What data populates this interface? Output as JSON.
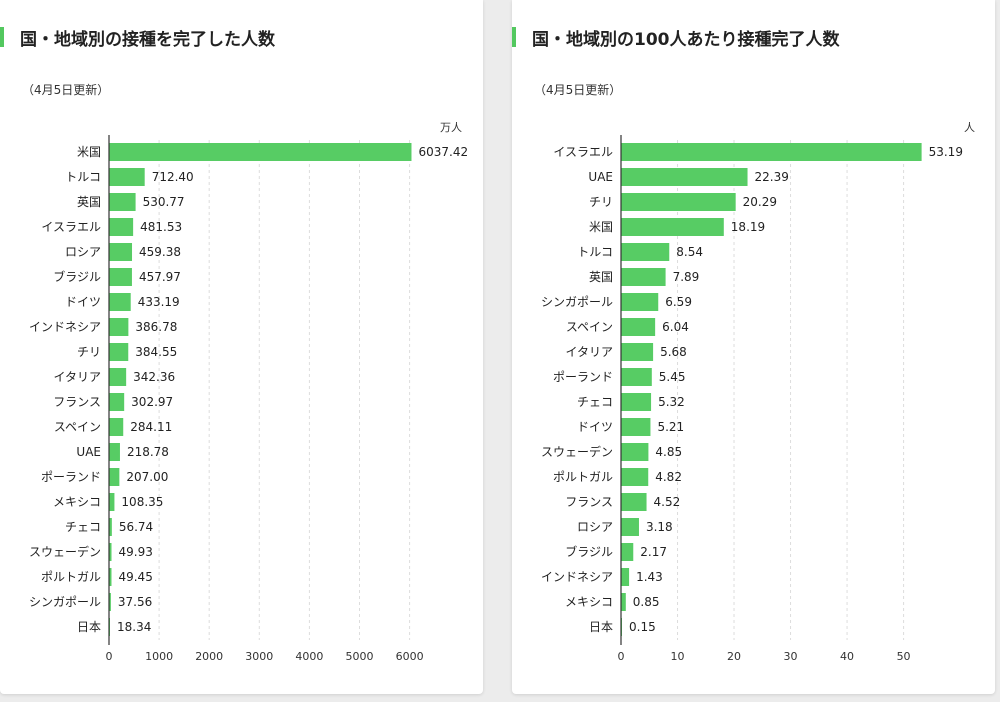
{
  "colors": {
    "bar": "#57cc64",
    "accent": "#53c85f",
    "axis": "#333333",
    "grid": "#dddddd"
  },
  "chart_data": [
    {
      "type": "bar",
      "orientation": "horizontal",
      "title": "国・地域別の接種を完了した人数",
      "subtitle": "（4月5日更新）",
      "unit": "万人",
      "categories": [
        "米国",
        "トルコ",
        "英国",
        "イスラエル",
        "ロシア",
        "ブラジル",
        "ドイツ",
        "インドネシア",
        "チリ",
        "イタリア",
        "フランス",
        "スペイン",
        "UAE",
        "ポーランド",
        "メキシコ",
        "チェコ",
        "スウェーデン",
        "ポルトガル",
        "シンガポール",
        "日本"
      ],
      "values": [
        6037.42,
        712.4,
        530.77,
        481.53,
        459.38,
        457.97,
        433.19,
        386.78,
        384.55,
        342.36,
        302.97,
        284.11,
        218.78,
        207.0,
        108.35,
        56.74,
        49.93,
        49.45,
        37.56,
        18.34
      ],
      "value_labels": [
        "6037.42",
        "712.40",
        "530.77",
        "481.53",
        "459.38",
        "457.97",
        "433.19",
        "386.78",
        "384.55",
        "342.36",
        "302.97",
        "284.11",
        "218.78",
        "207.00",
        "108.35",
        "56.74",
        "49.93",
        "49.45",
        "37.56",
        "18.34"
      ],
      "xlim": [
        0,
        6000
      ],
      "xticks": [
        0,
        1000,
        2000,
        3000,
        4000,
        5000,
        6000
      ],
      "grid": true
    },
    {
      "type": "bar",
      "orientation": "horizontal",
      "title": "国・地域別の100人あたり接種完了人数",
      "subtitle": "（4月5日更新）",
      "unit": "人",
      "categories": [
        "イスラエル",
        "UAE",
        "チリ",
        "米国",
        "トルコ",
        "英国",
        "シンガポール",
        "スペイン",
        "イタリア",
        "ポーランド",
        "チェコ",
        "ドイツ",
        "スウェーデン",
        "ポルトガル",
        "フランス",
        "ロシア",
        "ブラジル",
        "インドネシア",
        "メキシコ",
        "日本"
      ],
      "values": [
        53.19,
        22.39,
        20.29,
        18.19,
        8.54,
        7.89,
        6.59,
        6.04,
        5.68,
        5.45,
        5.32,
        5.21,
        4.85,
        4.82,
        4.52,
        3.18,
        2.17,
        1.43,
        0.85,
        0.15
      ],
      "value_labels": [
        "53.19",
        "22.39",
        "20.29",
        "18.19",
        "8.54",
        "7.89",
        "6.59",
        "6.04",
        "5.68",
        "5.45",
        "5.32",
        "5.21",
        "4.85",
        "4.82",
        "4.52",
        "3.18",
        "2.17",
        "1.43",
        "0.85",
        "0.15"
      ],
      "xlim": [
        0,
        53.19
      ],
      "xticks": [
        0,
        10,
        20,
        30,
        40,
        50
      ],
      "grid": true
    }
  ]
}
